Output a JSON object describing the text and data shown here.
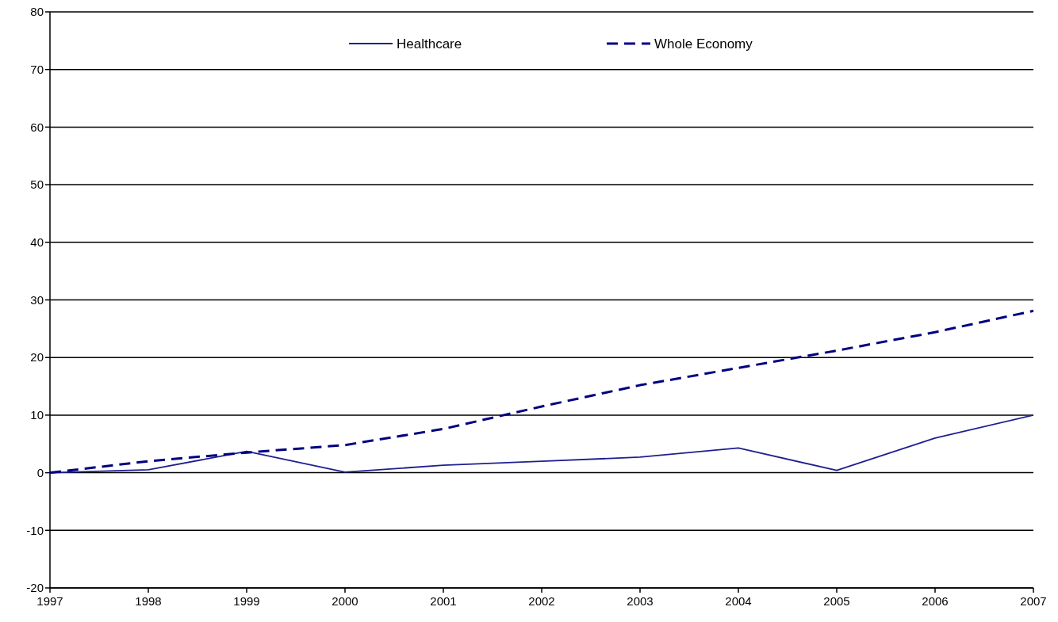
{
  "chart_data": {
    "type": "line",
    "x": [
      1997,
      1998,
      1999,
      2000,
      2001,
      2002,
      2003,
      2004,
      2005,
      2006,
      2007
    ],
    "series": [
      {
        "name": "Healthcare",
        "color": "#1f1f8f",
        "line_style": "solid",
        "values": [
          0,
          0.5,
          3.7,
          0.1,
          1.3,
          2.0,
          2.7,
          4.3,
          0.4,
          6.0,
          10.0
        ]
      },
      {
        "name": "Whole Economy",
        "color": "#000080",
        "line_style": "dashed",
        "values": [
          0,
          2.0,
          3.5,
          4.8,
          7.6,
          11.5,
          15.2,
          18.2,
          21.2,
          24.4,
          28.1
        ]
      }
    ],
    "xlim": [
      1997,
      2007
    ],
    "xticks": [
      1997,
      1998,
      1999,
      2000,
      2001,
      2002,
      2003,
      2004,
      2005,
      2006,
      2007
    ],
    "ylim": [
      -20,
      80
    ],
    "yticks": [
      -20,
      -10,
      0,
      10,
      20,
      30,
      40,
      50,
      60,
      70,
      80
    ],
    "grid": "y",
    "legend": "top",
    "marker": "none"
  }
}
